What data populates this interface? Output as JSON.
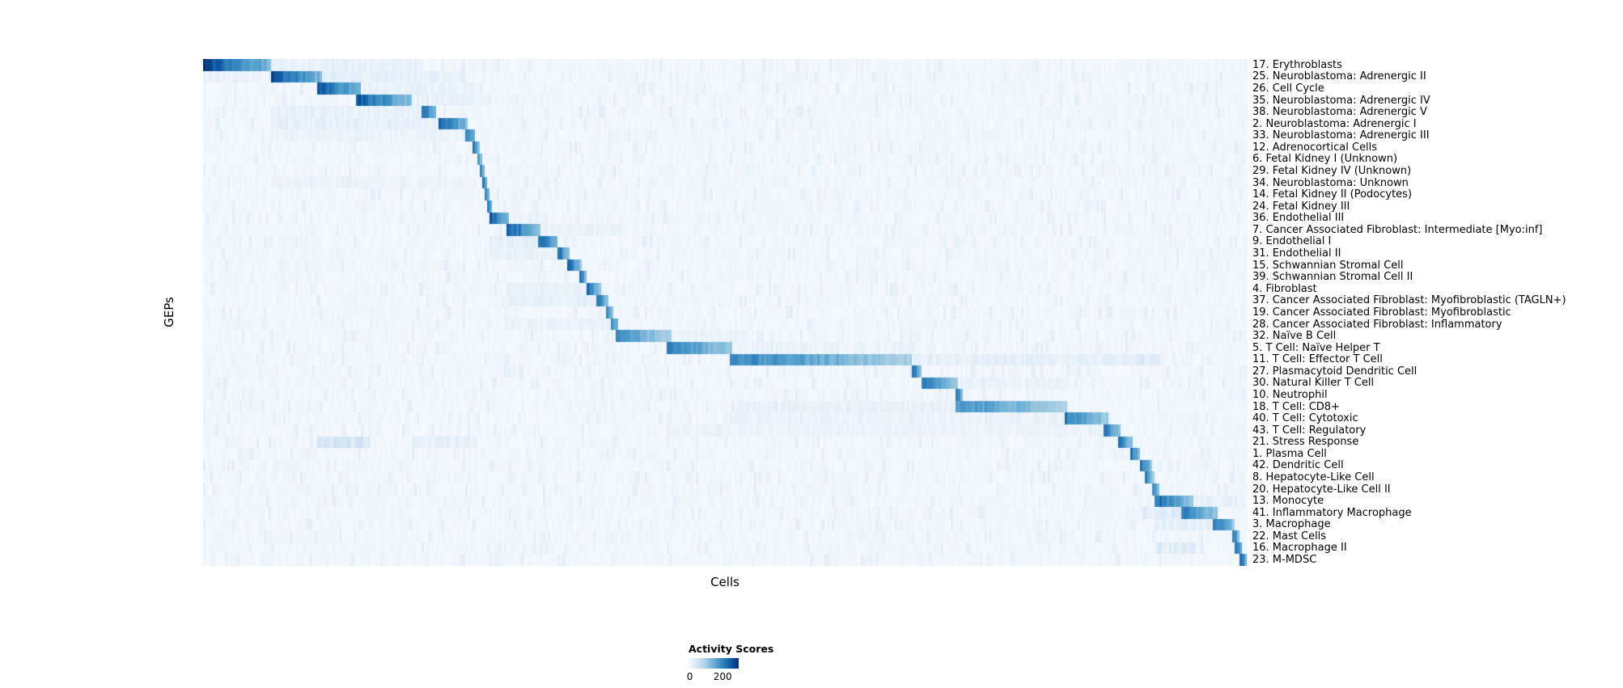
{
  "figure": {
    "ylabel": "GEPs",
    "xlabel": "Cells",
    "legend": {
      "title": "Activity Scores",
      "tick_min": "0",
      "tick_max": "200"
    }
  },
  "chart_data": {
    "type": "heatmap",
    "title": "",
    "xlabel": "Cells",
    "ylabel": "GEPs",
    "colorbar": {
      "title": "Activity Scores",
      "ticks": [
        0,
        200
      ],
      "min": 0,
      "max": 200
    },
    "colorscale": [
      "#f7fbff",
      "#deebf7",
      "#c6dbef",
      "#9ecae1",
      "#6baed6",
      "#4292c6",
      "#2171b5",
      "#08519c",
      "#08306b"
    ],
    "value_scale_note": "block positions given as fractions of x-range; intensity 1.0 = colorbar max (200)",
    "rows": [
      {
        "label": "17. Erythroblasts",
        "main": [
          0.0,
          0.065,
          1.0
        ],
        "secondary": [
          [
            0.065,
            0.21,
            0.1
          ]
        ]
      },
      {
        "label": "25. Neuroblastoma: Adrenergic II",
        "main": [
          0.065,
          0.115,
          0.97
        ],
        "secondary": [
          [
            0.115,
            0.25,
            0.12
          ],
          [
            0.0,
            0.065,
            0.08
          ]
        ]
      },
      {
        "label": "26. Cell Cycle",
        "main": [
          0.11,
          0.152,
          0.95
        ],
        "secondary": [
          [
            0.152,
            0.26,
            0.1
          ]
        ]
      },
      {
        "label": "35. Neuroblastoma: Adrenergic IV",
        "main": [
          0.146,
          0.2,
          0.95
        ],
        "secondary": [
          [
            0.2,
            0.26,
            0.1
          ]
        ]
      },
      {
        "label": "38. Neuroblastoma: Adrenergic V",
        "main": [
          0.209,
          0.224,
          0.9
        ],
        "secondary": [
          [
            0.065,
            0.209,
            0.1
          ]
        ]
      },
      {
        "label": "2. Neuroblastoma: Adrenergic I",
        "main": [
          0.226,
          0.253,
          0.95
        ],
        "secondary": [
          [
            0.065,
            0.226,
            0.12
          ]
        ]
      },
      {
        "label": "33. Neuroblastoma: Adrenergic III",
        "main": [
          0.25,
          0.261,
          0.9
        ],
        "secondary": [
          [
            0.065,
            0.25,
            0.08
          ]
        ]
      },
      {
        "label": "12. Adrenocortical Cells",
        "main": [
          0.259,
          0.264,
          0.85
        ],
        "secondary": []
      },
      {
        "label": "6. Fetal Kidney I (Unknown)",
        "main": [
          0.262,
          0.267,
          0.85
        ],
        "secondary": []
      },
      {
        "label": "29. Fetal Kidney IV (Unknown)",
        "main": [
          0.266,
          0.27,
          0.8
        ],
        "secondary": []
      },
      {
        "label": "34. Neuroblastoma: Unknown",
        "main": [
          0.268,
          0.272,
          0.8
        ],
        "secondary": [
          [
            0.065,
            0.26,
            0.07
          ]
        ]
      },
      {
        "label": "14. Fetal Kidney II (Podocytes)",
        "main": [
          0.27,
          0.274,
          0.85
        ],
        "secondary": []
      },
      {
        "label": "24. Fetal Kidney III",
        "main": [
          0.272,
          0.277,
          0.85
        ],
        "secondary": []
      },
      {
        "label": "36. Endothelial III",
        "main": [
          0.275,
          0.293,
          0.9
        ],
        "secondary": [
          [
            0.293,
            0.33,
            0.08
          ]
        ]
      },
      {
        "label": "7. Cancer Associated Fibroblast: Intermediate [Myo:inf]",
        "main": [
          0.29,
          0.322,
          0.95
        ],
        "secondary": [
          [
            0.322,
            0.4,
            0.08
          ]
        ]
      },
      {
        "label": "9. Endothelial I",
        "main": [
          0.321,
          0.34,
          0.9
        ],
        "secondary": [
          [
            0.275,
            0.321,
            0.12
          ]
        ]
      },
      {
        "label": "31. Endothelial II",
        "main": [
          0.339,
          0.35,
          0.9
        ],
        "secondary": [
          [
            0.275,
            0.339,
            0.1
          ]
        ]
      },
      {
        "label": "15. Schwannian Stromal Cell",
        "main": [
          0.349,
          0.362,
          0.9
        ],
        "secondary": []
      },
      {
        "label": "39. Schwannian Stromal Cell II",
        "main": [
          0.36,
          0.368,
          0.85
        ],
        "secondary": []
      },
      {
        "label": "4. Fibroblast",
        "main": [
          0.366,
          0.38,
          0.9
        ],
        "secondary": [
          [
            0.29,
            0.366,
            0.1
          ]
        ]
      },
      {
        "label": "37. Cancer Associated Fibroblast: Myofibroblastic (TAGLN+)",
        "main": [
          0.377,
          0.387,
          0.9
        ],
        "secondary": [
          [
            0.29,
            0.377,
            0.12
          ]
        ]
      },
      {
        "label": "19. Cancer Associated Fibroblast: Myofibroblastic",
        "main": [
          0.385,
          0.393,
          0.85
        ],
        "secondary": []
      },
      {
        "label": "28. Cancer Associated Fibroblast: Inflammatory",
        "main": [
          0.39,
          0.398,
          0.85
        ],
        "secondary": [
          [
            0.29,
            0.39,
            0.08
          ]
        ]
      },
      {
        "label": "32. Naïve B Cell",
        "main": [
          0.396,
          0.448,
          0.7
        ],
        "secondary": [
          [
            0.448,
            0.52,
            0.08
          ]
        ]
      },
      {
        "label": "5. T Cell: Naïve Helper T",
        "main": [
          0.445,
          0.506,
          0.8
        ],
        "secondary": [
          [
            0.506,
            0.68,
            0.08
          ]
        ]
      },
      {
        "label": "11. T Cell: Effector T Cell",
        "main": [
          0.504,
          0.678,
          0.75
        ],
        "secondary": [
          [
            0.678,
            0.88,
            0.12
          ],
          [
            0.88,
            0.92,
            0.15
          ]
        ]
      },
      {
        "label": "27. Plasmacytoid Dendritic Cell",
        "main": [
          0.679,
          0.687,
          0.95
        ],
        "secondary": []
      },
      {
        "label": "30. Natural Killer T Cell",
        "main": [
          0.687,
          0.723,
          0.8
        ],
        "secondary": [
          [
            0.723,
            0.83,
            0.08
          ]
        ]
      },
      {
        "label": "10. Neutrophil",
        "main": [
          0.721,
          0.728,
          0.85
        ],
        "secondary": []
      },
      {
        "label": "18. T Cell: CD8+",
        "main": [
          0.721,
          0.828,
          0.7
        ],
        "secondary": [
          [
            0.504,
            0.721,
            0.1
          ]
        ]
      },
      {
        "label": "40. T Cell: Cytotoxic",
        "main": [
          0.826,
          0.866,
          0.8
        ],
        "secondary": [
          [
            0.504,
            0.826,
            0.08
          ]
        ]
      },
      {
        "label": "43. T Cell: Regulatory",
        "main": [
          0.863,
          0.878,
          0.85
        ],
        "secondary": [
          [
            0.445,
            0.863,
            0.07
          ]
        ]
      },
      {
        "label": "21. Stress Response",
        "main": [
          0.876,
          0.89,
          0.85
        ],
        "secondary": [
          [
            0.11,
            0.16,
            0.22
          ],
          [
            0.2,
            0.26,
            0.12
          ]
        ]
      },
      {
        "label": "1. Plasma Cell",
        "main": [
          0.887,
          0.898,
          0.85
        ],
        "secondary": []
      },
      {
        "label": "42. Dendritic Cell",
        "main": [
          0.896,
          0.909,
          0.85
        ],
        "secondary": []
      },
      {
        "label": "8. Hepatocyte-Like Cell",
        "main": [
          0.902,
          0.91,
          0.8
        ],
        "secondary": []
      },
      {
        "label": "20. Hepatocyte-Like Cell II",
        "main": [
          0.908,
          0.916,
          0.8
        ],
        "secondary": []
      },
      {
        "label": "13. Monocyte",
        "main": [
          0.912,
          0.948,
          0.85
        ],
        "secondary": [
          [
            0.948,
            0.99,
            0.12
          ]
        ]
      },
      {
        "label": "41. Inflammatory Macrophage",
        "main": [
          0.936,
          0.972,
          0.8
        ],
        "secondary": [
          [
            0.9,
            0.936,
            0.15
          ]
        ]
      },
      {
        "label": "3. Macrophage",
        "main": [
          0.967,
          0.987,
          0.85
        ],
        "secondary": [
          [
            0.91,
            0.967,
            0.12
          ]
        ]
      },
      {
        "label": "22. Mast Cells",
        "main": [
          0.986,
          0.992,
          0.85
        ],
        "secondary": []
      },
      {
        "label": "16. Macrophage II",
        "main": [
          0.988,
          0.995,
          0.9
        ],
        "secondary": [
          [
            0.91,
            0.95,
            0.15
          ]
        ]
      },
      {
        "label": "23. M-MDSC",
        "main": [
          0.992,
          1.0,
          0.95
        ],
        "secondary": []
      }
    ]
  }
}
